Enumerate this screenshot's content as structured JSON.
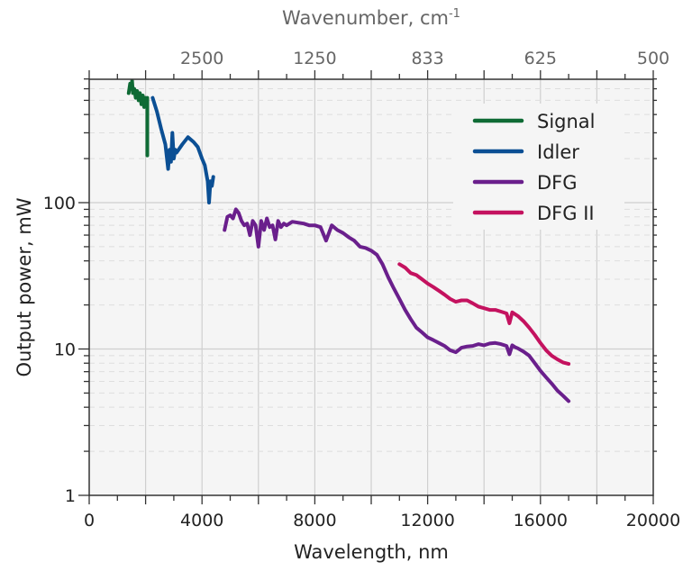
{
  "chart_data": {
    "type": "line",
    "title": "",
    "xlabel": "Wavelength, nm",
    "ylabel": "Output power, mW",
    "top_xlabel": "Wavenumber, cm-1",
    "top_xlabel_base": "Wavenumber, cm",
    "top_xlabel_sup": "-1",
    "xlim": [
      0,
      20000
    ],
    "ylim": [
      1,
      700
    ],
    "yscale": "log",
    "grid": true,
    "legend_position": "upper right",
    "x_ticks": [
      0,
      4000,
      8000,
      12000,
      16000,
      20000
    ],
    "x_tick_labels": [
      "0",
      "4000",
      "8000",
      "12000",
      "16000",
      "20000"
    ],
    "y_ticks": [
      1,
      10,
      100
    ],
    "y_tick_labels": [
      "1",
      "10",
      "100"
    ],
    "top_ticks_wavelength": [
      4000,
      8000,
      12000,
      16000,
      20000
    ],
    "top_tick_labels": [
      "2500",
      "1250",
      "833",
      "625",
      "500"
    ],
    "series": [
      {
        "name": "Signal",
        "color": "#0f6b35",
        "x": [
          1400,
          1450,
          1500,
          1520,
          1550,
          1600,
          1650,
          1700,
          1750,
          1800,
          1850,
          1900,
          1950,
          2000,
          2030,
          2060,
          2060
        ],
        "y": [
          560,
          650,
          600,
          680,
          560,
          600,
          520,
          580,
          500,
          560,
          470,
          540,
          450,
          520,
          480,
          520,
          210
        ]
      },
      {
        "name": "Idler",
        "color": "#0b4f94",
        "x": [
          2250,
          2400,
          2550,
          2700,
          2800,
          2850,
          2900,
          2950,
          3000,
          3050,
          3100,
          3300,
          3500,
          3700,
          3850,
          4000,
          4100,
          4200,
          4250,
          4300,
          4350,
          4400
        ],
        "y": [
          520,
          420,
          320,
          250,
          170,
          230,
          190,
          300,
          200,
          230,
          220,
          250,
          280,
          260,
          240,
          200,
          180,
          140,
          100,
          140,
          130,
          150
        ]
      },
      {
        "name": "DFG",
        "color": "#6a1f8c",
        "x": [
          4800,
          4900,
          5000,
          5100,
          5200,
          5300,
          5400,
          5500,
          5600,
          5700,
          5800,
          5900,
          6000,
          6100,
          6200,
          6300,
          6400,
          6500,
          6600,
          6700,
          6800,
          6900,
          7000,
          7200,
          7400,
          7600,
          7800,
          8000,
          8200,
          8400,
          8600,
          8800,
          9000,
          9200,
          9400,
          9600,
          9800,
          10000,
          10200,
          10400,
          10600,
          10800,
          11000,
          11200,
          11400,
          11600,
          11800,
          12000,
          12200,
          12400,
          12600,
          12800,
          13000,
          13200,
          13400,
          13600,
          13800,
          14000,
          14200,
          14400,
          14600,
          14800,
          14900,
          15000,
          15100,
          15200,
          15400,
          15600,
          15800,
          16000,
          16200,
          16400,
          16600,
          16800,
          17000
        ],
        "y": [
          65,
          80,
          82,
          78,
          90,
          85,
          75,
          70,
          72,
          60,
          75,
          70,
          50,
          75,
          65,
          78,
          68,
          70,
          56,
          75,
          68,
          72,
          70,
          74,
          73,
          72,
          70,
          70,
          68,
          55,
          70,
          65,
          62,
          58,
          55,
          50,
          49,
          47,
          44,
          38,
          31,
          26,
          22,
          18.5,
          16,
          14,
          13,
          12,
          11.5,
          11,
          10.5,
          9.8,
          9.5,
          10.2,
          10.4,
          10.5,
          10.8,
          10.6,
          10.9,
          11,
          10.8,
          10.5,
          9.2,
          10.6,
          10.3,
          10.1,
          9.6,
          9,
          8,
          7.1,
          6.4,
          5.8,
          5.2,
          4.8,
          4.4
        ]
      },
      {
        "name": "DFG II",
        "color": "#c4125f",
        "x": [
          11000,
          11200,
          11400,
          11600,
          11800,
          12000,
          12200,
          12400,
          12600,
          12800,
          13000,
          13200,
          13400,
          13600,
          13800,
          14000,
          14200,
          14400,
          14600,
          14800,
          14900,
          15000,
          15200,
          15400,
          15600,
          15800,
          16000,
          16200,
          16400,
          16600,
          16800,
          17000
        ],
        "y": [
          38,
          36,
          33,
          32,
          30,
          28,
          26.5,
          25,
          23.5,
          22,
          21,
          21.5,
          21.5,
          20.5,
          19.5,
          19,
          18.5,
          18.5,
          18,
          17.5,
          15,
          17.8,
          16.8,
          15.5,
          14,
          12.5,
          11,
          9.8,
          9,
          8.5,
          8.1,
          7.9
        ]
      }
    ]
  }
}
